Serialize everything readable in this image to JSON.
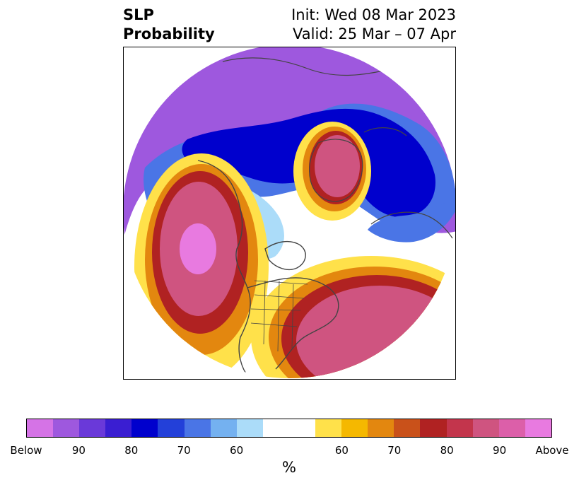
{
  "header": {
    "left_line1": "SLP",
    "left_line2": "Probability",
    "right_line1": "Init: Wed 08 Mar 2023",
    "right_line2": "Valid: 25 Mar – 07 Apr"
  },
  "colorbar": {
    "colors": [
      "#d573e6",
      "#9e58de",
      "#6a39d9",
      "#3a1ed2",
      "#0000cd",
      "#2340d9",
      "#4a75e6",
      "#74b1f0",
      "#abdcf9",
      "#ffffff",
      "#ffffff",
      "#ffe14a",
      "#f5b800",
      "#e3870f",
      "#c9511a",
      "#b02222",
      "#c3354c",
      "#cf5480",
      "#dc5fa9",
      "#e87ae0"
    ],
    "tick_labels": [
      "Below",
      "90",
      "80",
      "70",
      "60",
      "60",
      "70",
      "80",
      "90",
      "Above"
    ],
    "unit_label": "%"
  },
  "map": {
    "colors": {
      "below_edge": "#9e58de",
      "below_deep": "#0000cd",
      "below_mid": "#4a75e6",
      "below_light": "#abdcf9",
      "above_light": "#ffe14a",
      "above_mid": "#e3870f",
      "above_deep": "#b02222",
      "above_high": "#cf5480",
      "above_max": "#e87ae0",
      "coast": "#444444"
    }
  }
}
